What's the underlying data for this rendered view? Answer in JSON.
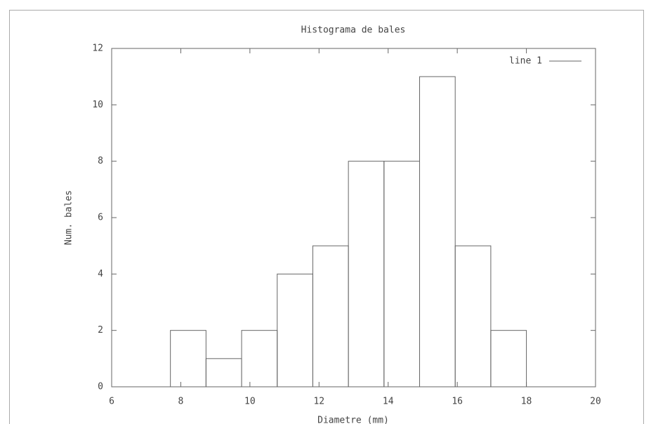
{
  "chart_data": {
    "type": "histogram",
    "title": "Histograma de bales",
    "x_label": "Diametre (mm)",
    "y_label": "Num. bales",
    "bins": [
      7.7,
      8.73,
      9.76,
      10.79,
      11.82,
      12.85,
      13.88,
      14.91,
      15.94,
      16.97,
      18.0
    ],
    "series": [
      {
        "name": "line 1",
        "color": "#666666",
        "values": [
          2,
          1,
          2,
          4,
          5,
          8,
          8,
          11,
          5,
          2
        ]
      }
    ],
    "xlim": [
      6,
      20
    ],
    "xticks": [
      6,
      8,
      10,
      12,
      14,
      16,
      18,
      20
    ],
    "ylim": [
      0,
      12
    ],
    "yticks": [
      0,
      2,
      4,
      6,
      8,
      10,
      12
    ],
    "legend": "top-right"
  }
}
